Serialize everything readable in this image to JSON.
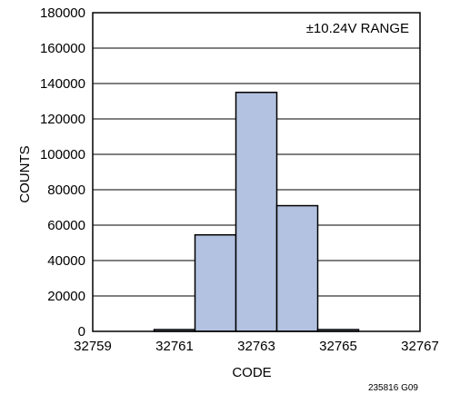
{
  "chart_data": {
    "type": "bar",
    "title": "",
    "xlabel": "CODE",
    "ylabel": "COUNTS",
    "annotation": "±10.24V RANGE",
    "figure_id": "235816 G09",
    "xlim": [
      32759,
      32767
    ],
    "ylim": [
      0,
      180000
    ],
    "x_ticks": [
      32759,
      32761,
      32763,
      32765,
      32767
    ],
    "y_ticks": [
      0,
      20000,
      40000,
      60000,
      80000,
      100000,
      120000,
      140000,
      160000,
      180000
    ],
    "grid": true,
    "bars": [
      {
        "code": 32761,
        "count": 1000
      },
      {
        "code": 32762,
        "count": 54500
      },
      {
        "code": 32763,
        "count": 135000
      },
      {
        "code": 32764,
        "count": 71000
      },
      {
        "code": 32765,
        "count": 1000
      }
    ],
    "bar_color": "#b3c2e0",
    "bar_edge_color": "#000000"
  }
}
